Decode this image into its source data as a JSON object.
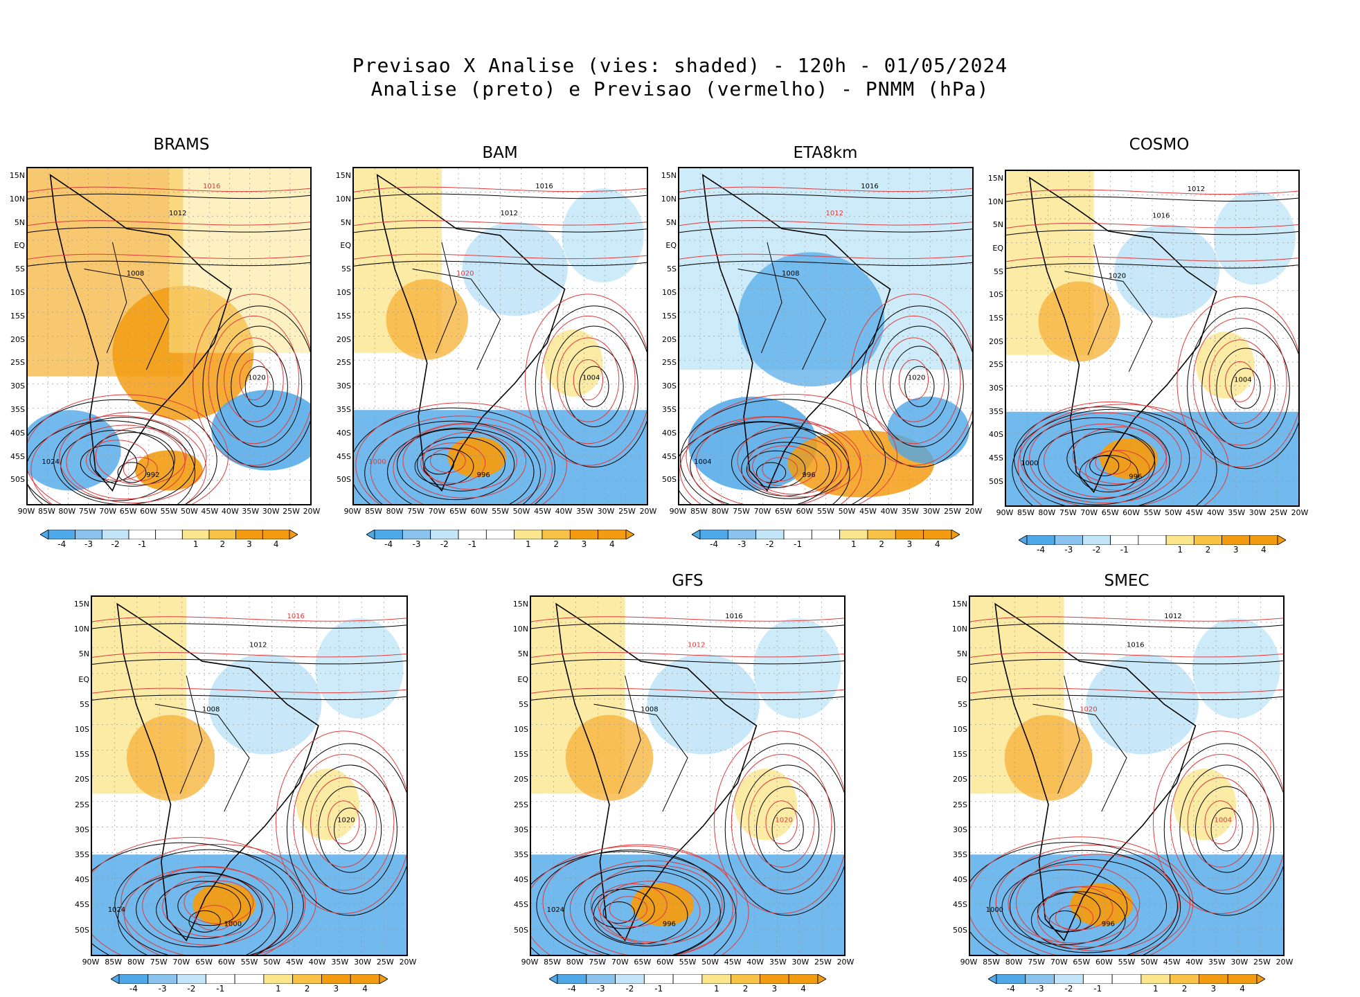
{
  "title": {
    "line1": "Previsao X Analise (vies: shaded) - 120h - 01/05/2024",
    "line2": "Analise (preto) e Previsao (vermelho) - PNMM (hPa)"
  },
  "axes": {
    "lat_labels": [
      "15N",
      "10N",
      "5N",
      "EQ",
      "5S",
      "10S",
      "15S",
      "20S",
      "25S",
      "30S",
      "35S",
      "40S",
      "45S",
      "50S"
    ],
    "lon_labels": [
      "90W",
      "85W",
      "80W",
      "75W",
      "70W",
      "65W",
      "60W",
      "55W",
      "50W",
      "45W",
      "40W",
      "35W",
      "30W",
      "25W",
      "20W"
    ]
  },
  "colorbar": {
    "labels": [
      "-4",
      "-3",
      "-2",
      "-1",
      "1",
      "2",
      "3",
      "4"
    ],
    "colors": [
      "#4fa8e8",
      "#8ac3ee",
      "#c2e6f8",
      "#ffffff",
      "#ffffff",
      "#fbe68e",
      "#f7c246",
      "#f39c12",
      "#f39c12"
    ]
  },
  "colors": {
    "analysis_contour": "#000000",
    "forecast_contour": "#e03a3a",
    "warm": "#f6b540",
    "cold": "#4fa8e8"
  },
  "panels": [
    {
      "name": "BRAMS",
      "title": "BRAMS",
      "bias": "warm",
      "labels": [
        [
          "1016",
          "red"
        ],
        [
          "1012",
          "black"
        ],
        [
          "1008",
          "black"
        ],
        [
          "1020",
          "black"
        ],
        [
          "1024",
          "black"
        ],
        [
          "992",
          "black"
        ]
      ]
    },
    {
      "name": "BAM",
      "title": "BAM",
      "bias": "mixed",
      "labels": [
        [
          "1016",
          "black"
        ],
        [
          "1012",
          "black"
        ],
        [
          "1020",
          "red"
        ],
        [
          "1004",
          "black"
        ],
        [
          "1000",
          "red"
        ],
        [
          "996",
          "black"
        ]
      ]
    },
    {
      "name": "ETA8km",
      "title": "ETA8km",
      "bias": "cold",
      "labels": [
        [
          "1016",
          "black"
        ],
        [
          "1012",
          "red"
        ],
        [
          "1008",
          "black"
        ],
        [
          "1020",
          "black"
        ],
        [
          "1004",
          "black"
        ],
        [
          "996",
          "black"
        ]
      ]
    },
    {
      "name": "COSMO",
      "title": "COSMO",
      "bias": "mixed",
      "labels": [
        [
          "1012",
          "black"
        ],
        [
          "1016",
          "black"
        ],
        [
          "1020",
          "black"
        ],
        [
          "1004",
          "black"
        ],
        [
          "1000",
          "black"
        ],
        [
          "996",
          "black"
        ]
      ]
    },
    {
      "name": "panel-5",
      "title": "",
      "bias": "mixed",
      "labels": [
        [
          "1016",
          "red"
        ],
        [
          "1012",
          "black"
        ],
        [
          "1008",
          "black"
        ],
        [
          "1020",
          "black"
        ],
        [
          "1024",
          "black"
        ],
        [
          "1000",
          "black"
        ]
      ]
    },
    {
      "name": "GFS",
      "title": "GFS",
      "bias": "mixed",
      "labels": [
        [
          "1016",
          "black"
        ],
        [
          "1012",
          "red"
        ],
        [
          "1008",
          "black"
        ],
        [
          "1020",
          "red"
        ],
        [
          "1024",
          "black"
        ],
        [
          "996",
          "black"
        ]
      ]
    },
    {
      "name": "SMEC",
      "title": "SMEC",
      "bias": "mixed",
      "labels": [
        [
          "1012",
          "black"
        ],
        [
          "1016",
          "black"
        ],
        [
          "1020",
          "red"
        ],
        [
          "1004",
          "red"
        ],
        [
          "1000",
          "black"
        ],
        [
          "996",
          "black"
        ]
      ]
    }
  ]
}
